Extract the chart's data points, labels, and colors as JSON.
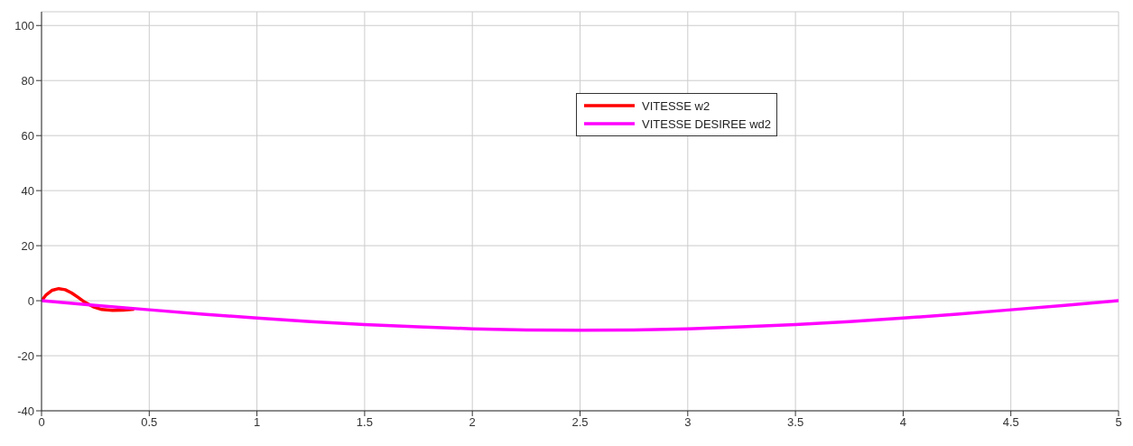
{
  "chart_data": {
    "type": "line",
    "xlim": [
      0,
      5
    ],
    "xticks": [
      0,
      0.5,
      1,
      1.5,
      2,
      2.5,
      3,
      3.5,
      4,
      4.5,
      5
    ],
    "ylim": [
      -40,
      105
    ],
    "yticks": [
      -40,
      -20,
      0,
      20,
      40,
      60,
      80,
      100
    ],
    "grid": true,
    "legend": "top",
    "series": [
      {
        "name": "VITESSE w2",
        "color": "#ff0000",
        "x": [
          0,
          0.02,
          0.05,
          0.08,
          0.11,
          0.14,
          0.17,
          0.2,
          0.24,
          0.28,
          0.33,
          0.38,
          0.43
        ],
        "values": [
          0,
          2,
          3.8,
          4.4,
          4,
          2.8,
          1.2,
          -0.5,
          -2.2,
          -3.2,
          -3.5,
          -3.4,
          -3.1
        ]
      },
      {
        "name": "VITESSE DESIREE wd2",
        "color": "#ff00ff",
        "x": [
          0,
          0.25,
          0.5,
          0.75,
          1,
          1.25,
          1.5,
          1.75,
          2,
          2.25,
          2.5,
          2.75,
          3,
          3.25,
          3.5,
          3.75,
          4,
          4.25,
          4.5,
          4.75,
          5
        ],
        "values": [
          0,
          -1.7,
          -3.3,
          -4.9,
          -6.3,
          -7.6,
          -8.7,
          -9.5,
          -10.2,
          -10.6,
          -10.7,
          -10.6,
          -10.2,
          -9.5,
          -8.7,
          -7.6,
          -6.3,
          -4.9,
          -3.3,
          -1.7,
          0
        ]
      }
    ]
  }
}
